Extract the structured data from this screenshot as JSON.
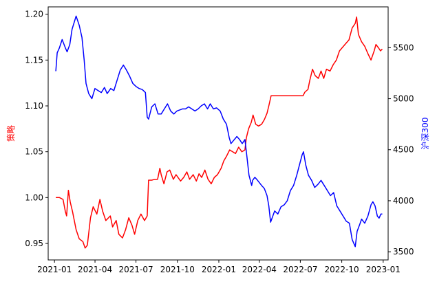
{
  "chart_data": {
    "type": "line",
    "title": "",
    "xlabel": "",
    "x_ticks": [
      "2021-01",
      "2021-04",
      "2021-07",
      "2021-10",
      "2022-01",
      "2022-04",
      "2022-07",
      "2022-10",
      "2023-01"
    ],
    "xlim": [
      "2020-12-18",
      "2023-01-12"
    ],
    "left_axis": {
      "label": "策略",
      "color": "#ff0000",
      "ylim": [
        0.932,
        1.208
      ],
      "ticks": [
        0.95,
        1.0,
        1.05,
        1.1,
        1.15,
        1.2
      ],
      "tick_labels": [
        "0.95",
        "1.00",
        "1.05",
        "1.10",
        "1.15",
        "1.20"
      ]
    },
    "right_axis": {
      "label": "沪深300",
      "color": "#0000ff",
      "ylim": [
        3420,
        5900
      ],
      "ticks": [
        3500,
        4000,
        4500,
        5000,
        5500
      ],
      "tick_labels": [
        "3500",
        "4000",
        "4500",
        "5000",
        "5500"
      ]
    },
    "series": [
      {
        "axis": "left",
        "color": "#ff0000",
        "points": [
          [
            "2021-01-04",
            1.0
          ],
          [
            "2021-01-12",
            1.0
          ],
          [
            "2021-01-20",
            0.998
          ],
          [
            "2021-01-25",
            0.985
          ],
          [
            "2021-01-28",
            0.98
          ],
          [
            "2021-02-01",
            1.008
          ],
          [
            "2021-02-05",
            0.995
          ],
          [
            "2021-02-10",
            0.985
          ],
          [
            "2021-02-18",
            0.965
          ],
          [
            "2021-02-25",
            0.955
          ],
          [
            "2021-03-05",
            0.952
          ],
          [
            "2021-03-10",
            0.945
          ],
          [
            "2021-03-15",
            0.948
          ],
          [
            "2021-03-22",
            0.978
          ],
          [
            "2021-03-28",
            0.99
          ],
          [
            "2021-04-05",
            0.982
          ],
          [
            "2021-04-12",
            0.998
          ],
          [
            "2021-04-18",
            0.985
          ],
          [
            "2021-04-25",
            0.975
          ],
          [
            "2021-05-05",
            0.98
          ],
          [
            "2021-05-10",
            0.968
          ],
          [
            "2021-05-18",
            0.975
          ],
          [
            "2021-05-24",
            0.96
          ],
          [
            "2021-06-01",
            0.956
          ],
          [
            "2021-06-08",
            0.965
          ],
          [
            "2021-06-15",
            0.978
          ],
          [
            "2021-06-22",
            0.97
          ],
          [
            "2021-06-28",
            0.96
          ],
          [
            "2021-07-05",
            0.975
          ],
          [
            "2021-07-12",
            0.982
          ],
          [
            "2021-07-20",
            0.975
          ],
          [
            "2021-07-26",
            0.98
          ],
          [
            "2021-07-29",
            1.019
          ],
          [
            "2021-08-05",
            1.019
          ],
          [
            "2021-08-12",
            1.02
          ],
          [
            "2021-08-18",
            1.02
          ],
          [
            "2021-08-23",
            1.032
          ],
          [
            "2021-08-26",
            1.025
          ],
          [
            "2021-09-01",
            1.015
          ],
          [
            "2021-09-08",
            1.028
          ],
          [
            "2021-09-14",
            1.03
          ],
          [
            "2021-09-22",
            1.02
          ],
          [
            "2021-09-28",
            1.025
          ],
          [
            "2021-10-08",
            1.018
          ],
          [
            "2021-10-15",
            1.022
          ],
          [
            "2021-10-22",
            1.028
          ],
          [
            "2021-10-28",
            1.02
          ],
          [
            "2021-11-05",
            1.025
          ],
          [
            "2021-11-12",
            1.018
          ],
          [
            "2021-11-18",
            1.026
          ],
          [
            "2021-11-24",
            1.022
          ],
          [
            "2021-12-01",
            1.03
          ],
          [
            "2021-12-08",
            1.02
          ],
          [
            "2021-12-15",
            1.015
          ],
          [
            "2021-12-22",
            1.022
          ],
          [
            "2021-12-29",
            1.025
          ],
          [
            "2022-01-06",
            1.032
          ],
          [
            "2022-01-12",
            1.04
          ],
          [
            "2022-01-18",
            1.045
          ],
          [
            "2022-01-25",
            1.052
          ],
          [
            "2022-02-07",
            1.048
          ],
          [
            "2022-02-14",
            1.055
          ],
          [
            "2022-02-21",
            1.05
          ],
          [
            "2022-02-28",
            1.052
          ],
          [
            "2022-03-03",
            1.065
          ],
          [
            "2022-03-08",
            1.075
          ],
          [
            "2022-03-14",
            1.082
          ],
          [
            "2022-03-18",
            1.09
          ],
          [
            "2022-03-24",
            1.08
          ],
          [
            "2022-03-30",
            1.078
          ],
          [
            "2022-04-06",
            1.08
          ],
          [
            "2022-04-12",
            1.085
          ],
          [
            "2022-04-18",
            1.092
          ],
          [
            "2022-04-22",
            1.1
          ],
          [
            "2022-04-27",
            1.111
          ],
          [
            "2022-05-15",
            1.111
          ],
          [
            "2022-06-10",
            1.111
          ],
          [
            "2022-07-07",
            1.111
          ],
          [
            "2022-07-11",
            1.115
          ],
          [
            "2022-07-18",
            1.118
          ],
          [
            "2022-07-22",
            1.128
          ],
          [
            "2022-07-28",
            1.14
          ],
          [
            "2022-08-03",
            1.133
          ],
          [
            "2022-08-10",
            1.13
          ],
          [
            "2022-08-16",
            1.138
          ],
          [
            "2022-08-22",
            1.13
          ],
          [
            "2022-08-28",
            1.14
          ],
          [
            "2022-09-05",
            1.138
          ],
          [
            "2022-09-12",
            1.145
          ],
          [
            "2022-09-19",
            1.15
          ],
          [
            "2022-09-26",
            1.16
          ],
          [
            "2022-10-10",
            1.168
          ],
          [
            "2022-10-17",
            1.172
          ],
          [
            "2022-10-24",
            1.185
          ],
          [
            "2022-10-31",
            1.19
          ],
          [
            "2022-11-03",
            1.197
          ],
          [
            "2022-11-07",
            1.178
          ],
          [
            "2022-11-14",
            1.17
          ],
          [
            "2022-11-21",
            1.165
          ],
          [
            "2022-11-28",
            1.157
          ],
          [
            "2022-12-05",
            1.15
          ],
          [
            "2022-12-12",
            1.16
          ],
          [
            "2022-12-16",
            1.167
          ],
          [
            "2022-12-22",
            1.163
          ],
          [
            "2022-12-26",
            1.16
          ],
          [
            "2022-12-30",
            1.162
          ]
        ]
      },
      {
        "axis": "right",
        "color": "#0000ff",
        "points": [
          [
            "2021-01-04",
            5270
          ],
          [
            "2021-01-07",
            5450
          ],
          [
            "2021-01-12",
            5500
          ],
          [
            "2021-01-18",
            5580
          ],
          [
            "2021-01-25",
            5500
          ],
          [
            "2021-01-29",
            5460
          ],
          [
            "2021-02-04",
            5530
          ],
          [
            "2021-02-09",
            5680
          ],
          [
            "2021-02-18",
            5810
          ],
          [
            "2021-02-25",
            5720
          ],
          [
            "2021-03-03",
            5600
          ],
          [
            "2021-03-08",
            5380
          ],
          [
            "2021-03-12",
            5150
          ],
          [
            "2021-03-18",
            5050
          ],
          [
            "2021-03-25",
            5000
          ],
          [
            "2021-04-01",
            5100
          ],
          [
            "2021-04-08",
            5080
          ],
          [
            "2021-04-15",
            5060
          ],
          [
            "2021-04-22",
            5110
          ],
          [
            "2021-04-28",
            5050
          ],
          [
            "2021-05-06",
            5100
          ],
          [
            "2021-05-13",
            5080
          ],
          [
            "2021-05-20",
            5180
          ],
          [
            "2021-05-27",
            5280
          ],
          [
            "2021-06-03",
            5330
          ],
          [
            "2021-06-10",
            5280
          ],
          [
            "2021-06-17",
            5220
          ],
          [
            "2021-06-24",
            5150
          ],
          [
            "2021-07-01",
            5120
          ],
          [
            "2021-07-08",
            5100
          ],
          [
            "2021-07-15",
            5090
          ],
          [
            "2021-07-22",
            5060
          ],
          [
            "2021-07-26",
            4820
          ],
          [
            "2021-07-29",
            4800
          ],
          [
            "2021-08-05",
            4920
          ],
          [
            "2021-08-12",
            4950
          ],
          [
            "2021-08-19",
            4850
          ],
          [
            "2021-08-26",
            4850
          ],
          [
            "2021-09-02",
            4900
          ],
          [
            "2021-09-09",
            4950
          ],
          [
            "2021-09-16",
            4880
          ],
          [
            "2021-09-23",
            4850
          ],
          [
            "2021-09-30",
            4880
          ],
          [
            "2021-10-12",
            4900
          ],
          [
            "2021-10-19",
            4900
          ],
          [
            "2021-10-26",
            4920
          ],
          [
            "2021-11-02",
            4900
          ],
          [
            "2021-11-09",
            4880
          ],
          [
            "2021-11-16",
            4900
          ],
          [
            "2021-11-23",
            4930
          ],
          [
            "2021-11-30",
            4950
          ],
          [
            "2021-12-07",
            4900
          ],
          [
            "2021-12-13",
            4950
          ],
          [
            "2021-12-20",
            4900
          ],
          [
            "2021-12-27",
            4910
          ],
          [
            "2022-01-04",
            4880
          ],
          [
            "2022-01-11",
            4800
          ],
          [
            "2022-01-18",
            4750
          ],
          [
            "2022-01-24",
            4620
          ],
          [
            "2022-01-28",
            4560
          ],
          [
            "2022-02-10",
            4630
          ],
          [
            "2022-02-16",
            4600
          ],
          [
            "2022-02-22",
            4560
          ],
          [
            "2022-02-28",
            4600
          ],
          [
            "2022-03-04",
            4450
          ],
          [
            "2022-03-09",
            4250
          ],
          [
            "2022-03-15",
            4150
          ],
          [
            "2022-03-17",
            4200
          ],
          [
            "2022-03-22",
            4230
          ],
          [
            "2022-03-28",
            4200
          ],
          [
            "2022-04-06",
            4150
          ],
          [
            "2022-04-12",
            4120
          ],
          [
            "2022-04-18",
            4050
          ],
          [
            "2022-04-22",
            3950
          ],
          [
            "2022-04-26",
            3790
          ],
          [
            "2022-05-05",
            3900
          ],
          [
            "2022-05-12",
            3870
          ],
          [
            "2022-05-19",
            3940
          ],
          [
            "2022-05-26",
            3960
          ],
          [
            "2022-06-02",
            4000
          ],
          [
            "2022-06-09",
            4100
          ],
          [
            "2022-06-16",
            4150
          ],
          [
            "2022-06-23",
            4250
          ],
          [
            "2022-06-29",
            4350
          ],
          [
            "2022-07-05",
            4450
          ],
          [
            "2022-07-08",
            4480
          ],
          [
            "2022-07-13",
            4350
          ],
          [
            "2022-07-19",
            4250
          ],
          [
            "2022-07-26",
            4200
          ],
          [
            "2022-08-02",
            4130
          ],
          [
            "2022-08-09",
            4160
          ],
          [
            "2022-08-16",
            4200
          ],
          [
            "2022-08-23",
            4150
          ],
          [
            "2022-08-30",
            4100
          ],
          [
            "2022-09-06",
            4050
          ],
          [
            "2022-09-13",
            4080
          ],
          [
            "2022-09-20",
            3950
          ],
          [
            "2022-09-27",
            3900
          ],
          [
            "2022-10-11",
            3800
          ],
          [
            "2022-10-18",
            3780
          ],
          [
            "2022-10-24",
            3620
          ],
          [
            "2022-10-31",
            3550
          ],
          [
            "2022-11-04",
            3700
          ],
          [
            "2022-11-10",
            3770
          ],
          [
            "2022-11-14",
            3820
          ],
          [
            "2022-11-21",
            3780
          ],
          [
            "2022-11-28",
            3850
          ],
          [
            "2022-12-05",
            3960
          ],
          [
            "2022-12-09",
            3990
          ],
          [
            "2022-12-14",
            3950
          ],
          [
            "2022-12-19",
            3850
          ],
          [
            "2022-12-23",
            3830
          ],
          [
            "2022-12-27",
            3870
          ],
          [
            "2022-12-30",
            3870
          ]
        ]
      }
    ]
  }
}
